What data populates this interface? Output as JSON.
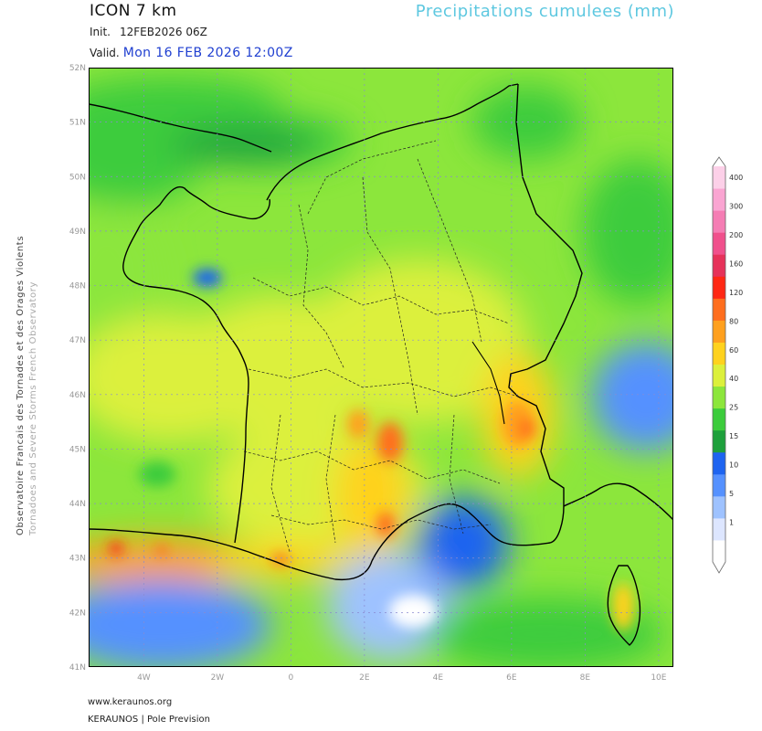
{
  "header": {
    "model": "ICON 7 km",
    "field": "Precipitations cumulees (mm)",
    "init_label": "Init.",
    "init_value": "12FEB2026 06Z",
    "valid_label": "Valid.",
    "valid_value": "Mon 16 FEB 2026 12:00Z"
  },
  "side_labels": {
    "fr": "Observatoire Francais des Tornades et des Orages Violents",
    "en": "Tornadoes and Severe Storms French Observatory"
  },
  "footer": {
    "url": "www.keraunos.org",
    "brand": "KERAUNOS | Pole Prevision"
  },
  "map": {
    "lat_labels": [
      "52N",
      "51N",
      "50N",
      "49N",
      "48N",
      "47N",
      "46N",
      "45N",
      "44N",
      "43N",
      "42N",
      "41N"
    ],
    "lon_labels": [
      "4W",
      "2W",
      "0",
      "2E",
      "4E",
      "6E",
      "8E",
      "10E"
    ]
  },
  "legend": {
    "levels": [
      "1",
      "5",
      "10",
      "15",
      "25",
      "40",
      "60",
      "80",
      "120",
      "160",
      "200",
      "300",
      "400"
    ],
    "colors": [
      "#ffffff",
      "#dde6ff",
      "#9ec2ff",
      "#5591ff",
      "#1e64f0",
      "#1ea03c",
      "#3ccc3c",
      "#8ce63c",
      "#dcf03c",
      "#ffd21e",
      "#ffa01e",
      "#ff6e1e",
      "#ff2814",
      "#e6325a",
      "#f0508c",
      "#f57db4",
      "#faa5d2",
      "#fcd0e8"
    ],
    "colors_note": ""
  }
}
